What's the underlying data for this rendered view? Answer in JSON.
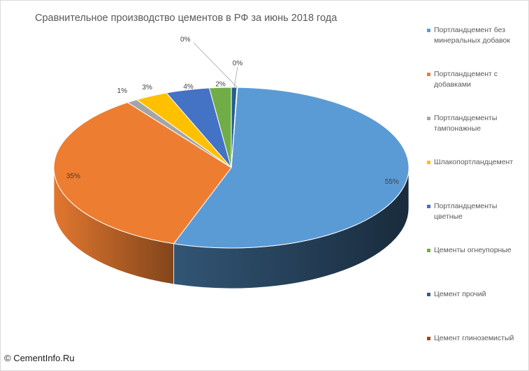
{
  "title": "Сравнительное производство цементов в РФ за июнь 2018 года",
  "watermark": "© CementInfo.Ru",
  "chart_data": {
    "type": "pie",
    "title": "Сравнительное производство цементов в РФ за июнь 2018 года",
    "legend_position": "right",
    "three_d": true,
    "slices": [
      {
        "name": "Портландцемент без минеральных добавок",
        "value": 55,
        "label": "55%",
        "color": "#5B9BD5"
      },
      {
        "name": "Портландцемент с добавками",
        "value": 35,
        "label": "35%",
        "color": "#ED7D31"
      },
      {
        "name": "Портландцементы тампонажные",
        "value": 1,
        "label": "1%",
        "color": "#A5A5A5"
      },
      {
        "name": "Шлакопортландцемент",
        "value": 3,
        "label": "3%",
        "color": "#FFC000"
      },
      {
        "name": "Портландцементы цветные",
        "value": 4,
        "label": "4%",
        "color": "#4472C4"
      },
      {
        "name": "Цементы огнеупорные",
        "value": 2,
        "label": "2%",
        "color": "#70AD47"
      },
      {
        "name": "Цемент прочий",
        "value": 0.5,
        "label": "0%",
        "color": "#255E91"
      },
      {
        "name": "Цемент глиноземистый",
        "value": 0.05,
        "label": "0%",
        "color": "#9E480E"
      }
    ]
  }
}
